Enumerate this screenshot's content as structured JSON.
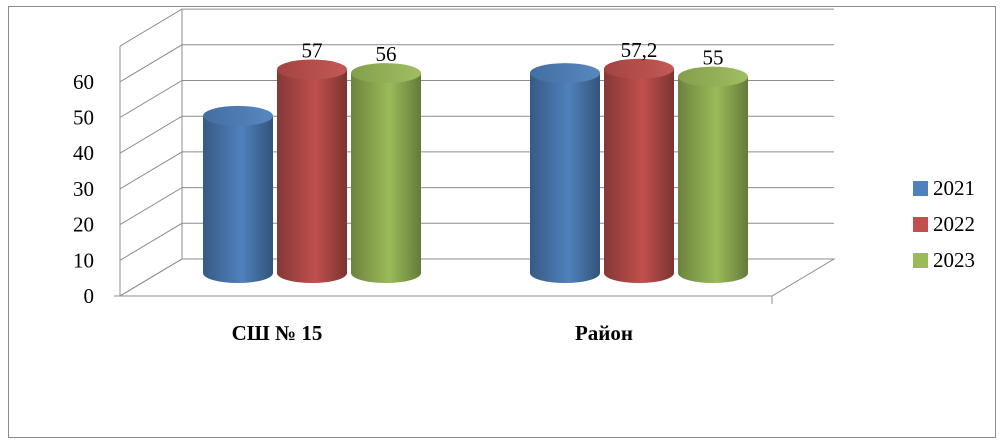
{
  "chart_data": {
    "type": "bar",
    "categories": [
      "СШ № 15",
      "Район"
    ],
    "series": [
      {
        "name": "2021",
        "color": "#4f81bd",
        "values": [
          44,
          56
        ]
      },
      {
        "name": "2022",
        "color": "#c0504d",
        "values": [
          57,
          57.2
        ]
      },
      {
        "name": "2023",
        "color": "#9bbb59",
        "values": [
          56,
          55
        ]
      }
    ],
    "data_labels": [
      [
        null,
        null
      ],
      [
        "57",
        "57,2"
      ],
      [
        "56",
        "55"
      ]
    ],
    "y_ticks": [
      "0",
      "10",
      "20",
      "30",
      "40",
      "50",
      "60"
    ],
    "ylim": [
      0,
      70
    ],
    "grid": true,
    "legend_position": "right",
    "style": "3d-cylinder"
  }
}
